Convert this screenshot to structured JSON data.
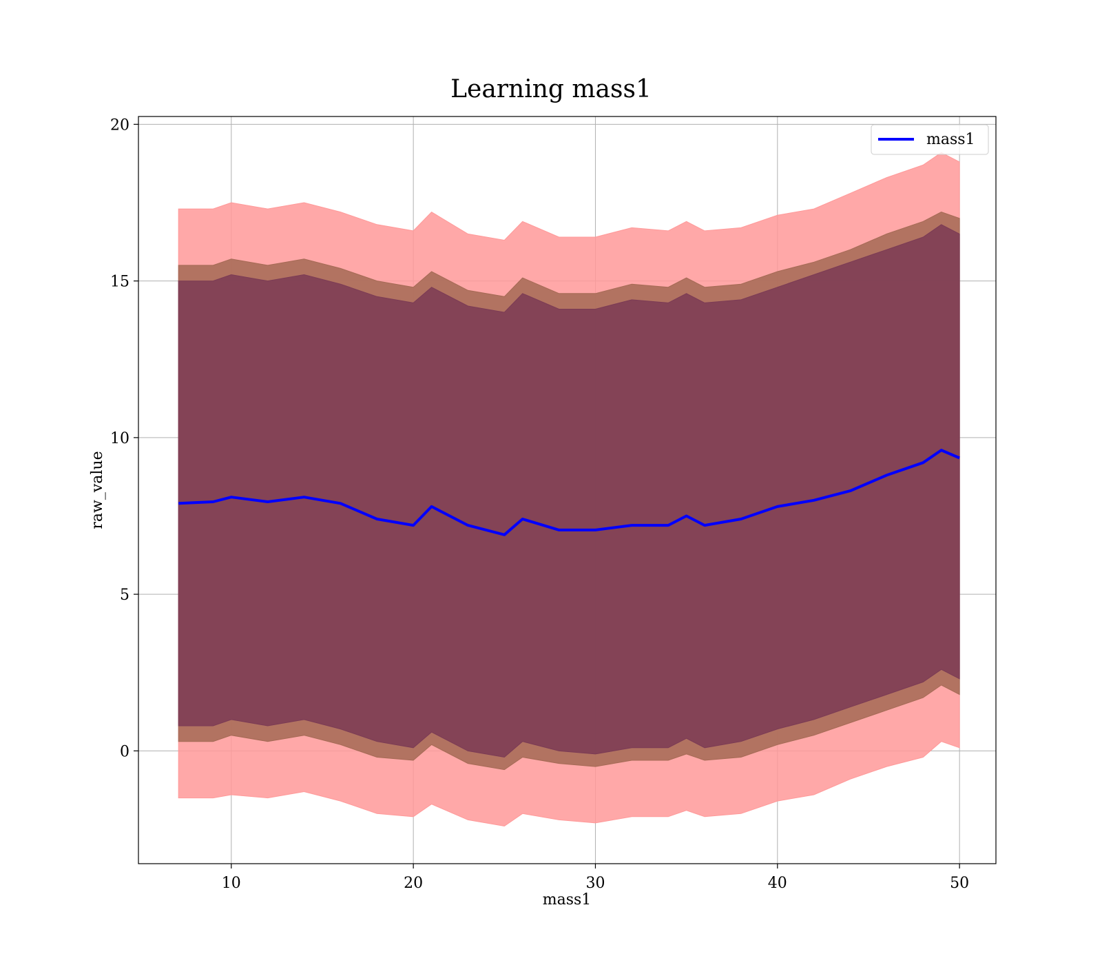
{
  "chart_data": {
    "type": "area",
    "title": "Learning mass1",
    "xlabel": "mass1",
    "ylabel": "raw_value",
    "xlim": [
      4.9,
      52.0
    ],
    "ylim": [
      -3.6,
      20.25
    ],
    "xticks": [
      10,
      20,
      30,
      40,
      50
    ],
    "yticks": [
      0,
      5,
      10,
      15,
      20
    ],
    "grid": true,
    "legend": {
      "position": "top-right",
      "entries": [
        "mass1"
      ]
    },
    "colors": {
      "line": "#0000ff",
      "band_outer": "#ff9999",
      "band_middle": "#a56a55",
      "band_inner": "#7b3b55"
    },
    "x": [
      7.1,
      9,
      10,
      12,
      14,
      16,
      18,
      20,
      21,
      23,
      25,
      26,
      28,
      30,
      32,
      34,
      35,
      36,
      38,
      40,
      42,
      44,
      46,
      48,
      49,
      50
    ],
    "series": [
      {
        "name": "mass1",
        "values": [
          7.9,
          7.95,
          8.1,
          7.95,
          8.1,
          7.9,
          7.4,
          7.2,
          7.8,
          7.2,
          6.9,
          7.4,
          7.05,
          7.05,
          7.2,
          7.2,
          7.5,
          7.2,
          7.4,
          7.8,
          8.0,
          8.3,
          8.8,
          9.2,
          9.6,
          9.35
        ]
      }
    ],
    "bands": [
      {
        "role": "outer",
        "upper": [
          17.3,
          17.3,
          17.5,
          17.3,
          17.5,
          17.2,
          16.8,
          16.6,
          17.2,
          16.5,
          16.3,
          16.9,
          16.4,
          16.4,
          16.7,
          16.6,
          16.9,
          16.6,
          16.7,
          17.1,
          17.3,
          17.8,
          18.3,
          18.7,
          19.1,
          18.8
        ],
        "lower": [
          -1.5,
          -1.5,
          -1.4,
          -1.5,
          -1.3,
          -1.6,
          -2.0,
          -2.1,
          -1.7,
          -2.2,
          -2.4,
          -2.0,
          -2.2,
          -2.3,
          -2.1,
          -2.1,
          -1.9,
          -2.1,
          -2.0,
          -1.6,
          -1.4,
          -0.9,
          -0.5,
          -0.2,
          0.3,
          0.1
        ]
      },
      {
        "role": "middle",
        "upper": [
          15.5,
          15.5,
          15.7,
          15.5,
          15.7,
          15.4,
          15.0,
          14.8,
          15.3,
          14.7,
          14.5,
          15.1,
          14.6,
          14.6,
          14.9,
          14.8,
          15.1,
          14.8,
          14.9,
          15.3,
          15.6,
          16.0,
          16.5,
          16.9,
          17.2,
          17.0
        ],
        "lower": [
          0.3,
          0.3,
          0.5,
          0.3,
          0.5,
          0.2,
          -0.2,
          -0.3,
          0.2,
          -0.4,
          -0.6,
          -0.2,
          -0.4,
          -0.5,
          -0.3,
          -0.3,
          -0.1,
          -0.3,
          -0.2,
          0.2,
          0.5,
          0.9,
          1.3,
          1.7,
          2.1,
          1.8
        ]
      },
      {
        "role": "inner",
        "upper": [
          15.0,
          15.0,
          15.2,
          15.0,
          15.2,
          14.9,
          14.5,
          14.3,
          14.8,
          14.2,
          14.0,
          14.6,
          14.1,
          14.1,
          14.4,
          14.3,
          14.6,
          14.3,
          14.4,
          14.8,
          15.2,
          15.6,
          16.0,
          16.4,
          16.8,
          16.5
        ],
        "lower": [
          0.8,
          0.8,
          1.0,
          0.8,
          1.0,
          0.7,
          0.3,
          0.1,
          0.6,
          0.0,
          -0.2,
          0.3,
          0.0,
          -0.1,
          0.1,
          0.1,
          0.4,
          0.1,
          0.3,
          0.7,
          1.0,
          1.4,
          1.8,
          2.2,
          2.6,
          2.3
        ]
      }
    ]
  }
}
